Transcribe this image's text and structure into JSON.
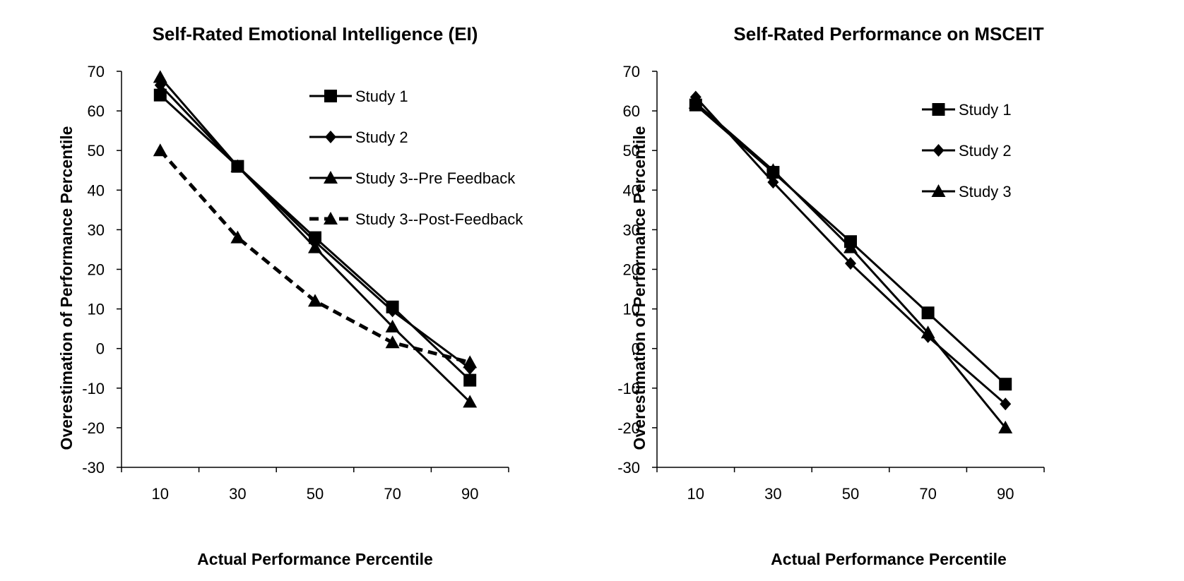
{
  "chart_data": [
    {
      "type": "line",
      "title": "Self-Rated Emotional Intelligence (EI)",
      "xlabel": "Actual Performance Percentile",
      "ylabel": "Overestimation of Performance Percentile",
      "x": [
        10,
        30,
        50,
        70,
        90
      ],
      "x_tick_labels": [
        "10",
        "30",
        "50",
        "70",
        "90"
      ],
      "ylim": [
        -30,
        70
      ],
      "y_ticks": [
        -30,
        -20,
        -10,
        0,
        10,
        20,
        30,
        40,
        50,
        60,
        70
      ],
      "grid": false,
      "legend_position": "top-right",
      "series": [
        {
          "name": "Study 1",
          "marker": "square",
          "line": "solid",
          "values": [
            64,
            46,
            28,
            10.5,
            -8
          ]
        },
        {
          "name": "Study 2",
          "marker": "diamond",
          "line": "solid",
          "values": [
            66.5,
            46,
            27,
            9.5,
            -5
          ]
        },
        {
          "name": "Study 3--Pre Feedback",
          "marker": "triangle",
          "line": "solid",
          "values": [
            68.5,
            46,
            25.5,
            5.5,
            -13.5
          ]
        },
        {
          "name": "Study 3--Post-Feedback",
          "marker": "triangle",
          "line": "dashed",
          "values": [
            50,
            28,
            12,
            1.5,
            -3.5
          ]
        }
      ]
    },
    {
      "type": "line",
      "title": "Self-Rated Performance on MSCEIT",
      "xlabel": "Actual Performance Percentile",
      "ylabel": "Overestimation of Performance Percentile",
      "x": [
        10,
        30,
        50,
        70,
        90
      ],
      "x_tick_labels": [
        "10",
        "30",
        "50",
        "70",
        "90"
      ],
      "ylim": [
        -30,
        70
      ],
      "y_ticks": [
        -30,
        -20,
        -10,
        0,
        10,
        20,
        30,
        40,
        50,
        60,
        70
      ],
      "grid": false,
      "legend_position": "top-right",
      "series": [
        {
          "name": "Study 1",
          "marker": "square",
          "line": "solid",
          "values": [
            61.5,
            44.5,
            27,
            9,
            -9
          ]
        },
        {
          "name": "Study 2",
          "marker": "diamond",
          "line": "solid",
          "values": [
            63.5,
            42,
            21.5,
            3,
            -14
          ]
        },
        {
          "name": "Study 3",
          "marker": "triangle",
          "line": "solid",
          "values": [
            62,
            45,
            25.5,
            4,
            -20
          ]
        }
      ]
    }
  ]
}
